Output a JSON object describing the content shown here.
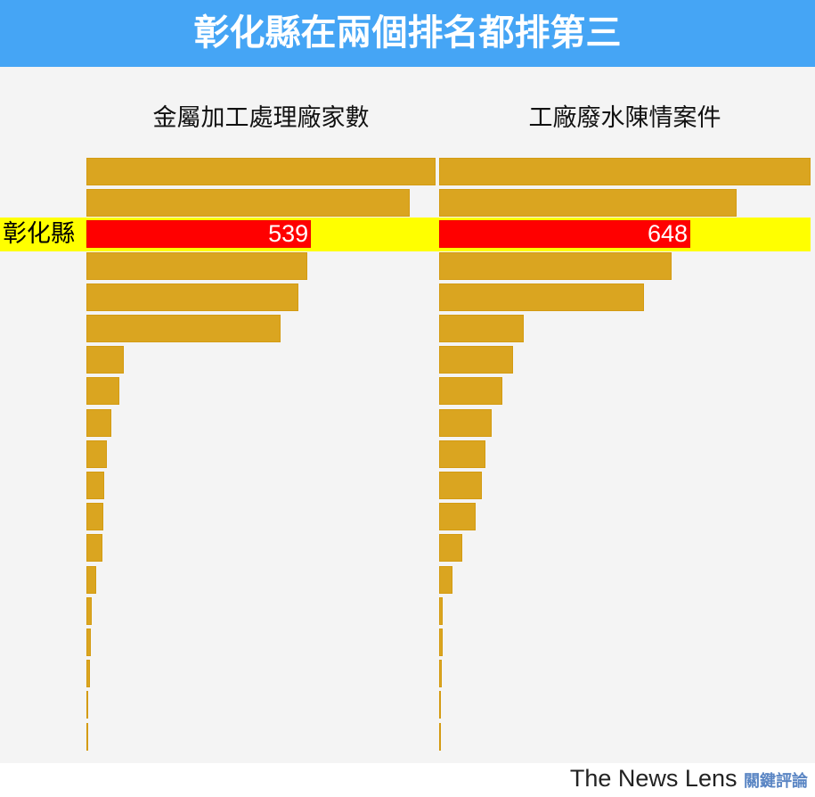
{
  "headline": "彰化縣在兩個排名都排第三",
  "footer": {
    "brand": "The News Lens",
    "brand_zh": "關鍵評論"
  },
  "colors": {
    "bar": "#daa520",
    "highlight_bar": "#ff0000",
    "highlight_row": "#ffff00",
    "banner": "#45a5f5"
  },
  "chart_data": [
    {
      "type": "bar",
      "orientation": "horizontal",
      "title": "金屬加工處理廠家數",
      "highlight": {
        "label": "彰化縣",
        "rank": 3,
        "value": 539
      },
      "values": [
        838,
        776,
        539,
        530,
        509,
        466,
        90,
        79,
        60,
        49,
        43,
        41,
        38,
        24,
        13,
        11,
        9,
        2,
        1
      ],
      "value_labels": {
        "2": "539"
      }
    },
    {
      "type": "bar",
      "orientation": "horizontal",
      "title": "工廠廢水陳情案件",
      "highlight": {
        "label": "彰化縣",
        "rank": 3,
        "value": 648
      },
      "values": [
        958,
        767,
        648,
        600,
        529,
        218,
        191,
        163,
        136,
        119,
        110,
        94,
        60,
        34,
        9,
        9,
        7,
        5,
        2
      ],
      "value_labels": {
        "2": "648"
      }
    }
  ]
}
